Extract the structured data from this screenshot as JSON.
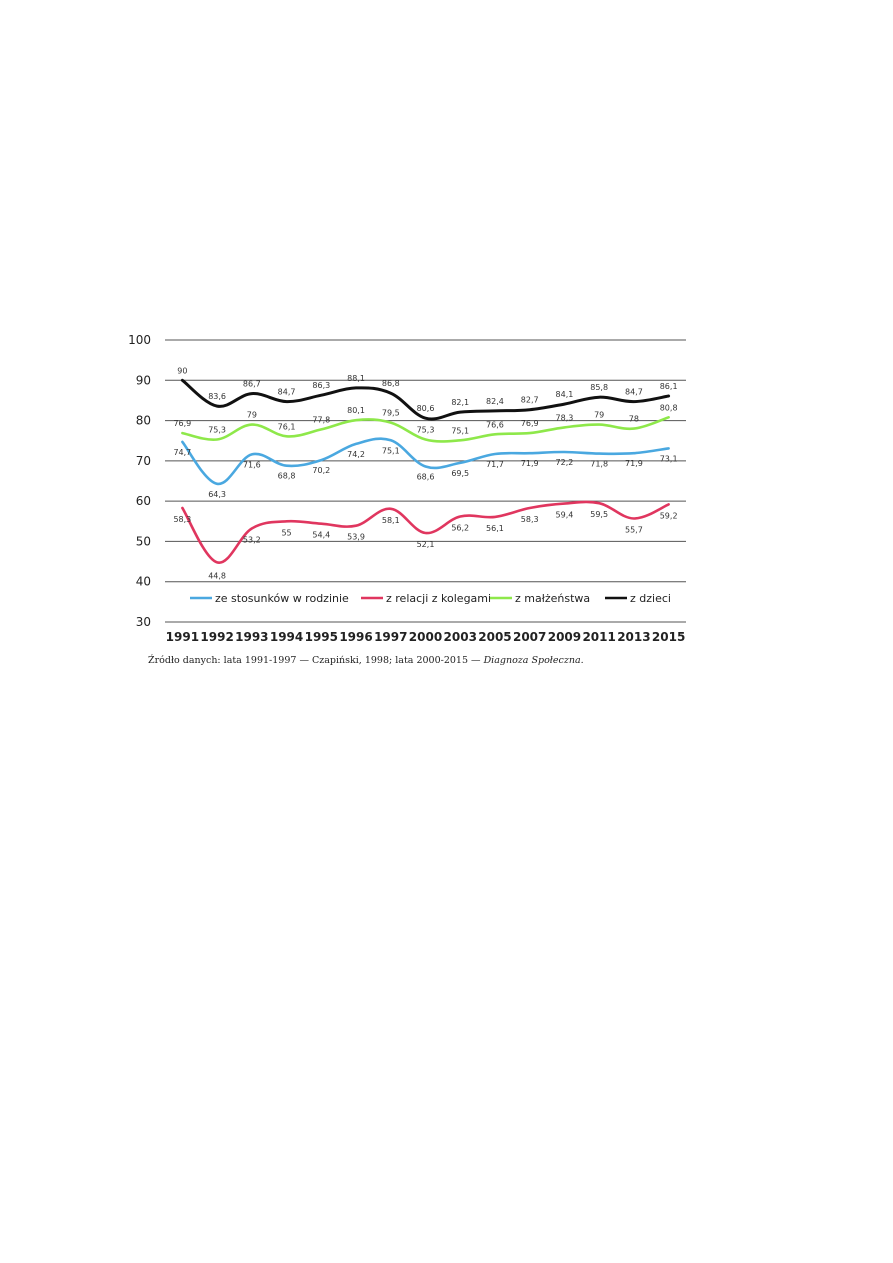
{
  "chart_data": {
    "type": "line",
    "x": [
      "1991",
      "1992",
      "1993",
      "1994",
      "1995",
      "1996",
      "1997",
      "2000",
      "2003",
      "2005",
      "2007",
      "2009",
      "2011",
      "2013",
      "2015"
    ],
    "ylim": [
      30,
      100
    ],
    "yticks": [
      30,
      40,
      50,
      60,
      70,
      80,
      90,
      100
    ],
    "grid": true,
    "legend_position": "bottom",
    "series": [
      {
        "name": "ze stosunków w rodzinie",
        "color": "#4aa8e0",
        "values": [
          74.7,
          64.3,
          71.6,
          68.8,
          70.2,
          74.2,
          75.1,
          68.6,
          69.5,
          71.7,
          71.9,
          72.2,
          71.8,
          71.9,
          73.1
        ],
        "labels": [
          "74,7",
          "64,3",
          "71,6",
          "68,8",
          "70,2",
          "74,2",
          "75,1",
          "68,6",
          "69,5",
          "71,7",
          "71,9",
          "72,2",
          "71,8",
          "71,9",
          "73,1"
        ]
      },
      {
        "name": "z relacji z kolegami",
        "color": "#e0365f",
        "values": [
          58.3,
          44.8,
          53.2,
          55,
          54.4,
          53.9,
          58.1,
          52.1,
          56.2,
          56.1,
          58.3,
          59.4,
          59.5,
          55.7,
          59.2
        ],
        "labels": [
          "58,3",
          "44,8",
          "53,2",
          "55",
          "54,4",
          "53,9",
          "58,1",
          "52,1",
          "56,2",
          "56,1",
          "58,3",
          "59,4",
          "59,5",
          "55,7",
          "59,2"
        ]
      },
      {
        "name": "z małżeństwa",
        "color": "#8ee84a",
        "values": [
          76.9,
          75.3,
          79,
          76.1,
          77.8,
          80.1,
          79.5,
          75.3,
          75.1,
          76.6,
          76.9,
          78.3,
          79,
          78,
          80.8
        ],
        "labels": [
          "76,9",
          "75,3",
          "79",
          "76,1",
          "77,8",
          "80,1",
          "79,5",
          "75,3",
          "75,1",
          "76,6",
          "76,9",
          "78,3",
          "79",
          "78",
          "80,8"
        ]
      },
      {
        "name": "z dzieci",
        "color": "#111111",
        "values": [
          90,
          83.6,
          86.7,
          84.7,
          86.3,
          88.1,
          86.8,
          80.6,
          82.1,
          82.4,
          82.7,
          84.1,
          85.8,
          84.7,
          86.1
        ],
        "labels": [
          "90",
          "83,6",
          "86,7",
          "84,7",
          "86,3",
          "88,1",
          "86,8",
          "80,6",
          "82,1",
          "82,4",
          "82,7",
          "84,1",
          "85,8",
          "84,7",
          "86,1"
        ]
      }
    ]
  },
  "source": {
    "prefix": "Źródło danych: lata 1991-1997 — Czapiński, 1998; lata 2000-2015 — ",
    "italic": "Diagnoza Społeczna",
    "suffix": "."
  }
}
